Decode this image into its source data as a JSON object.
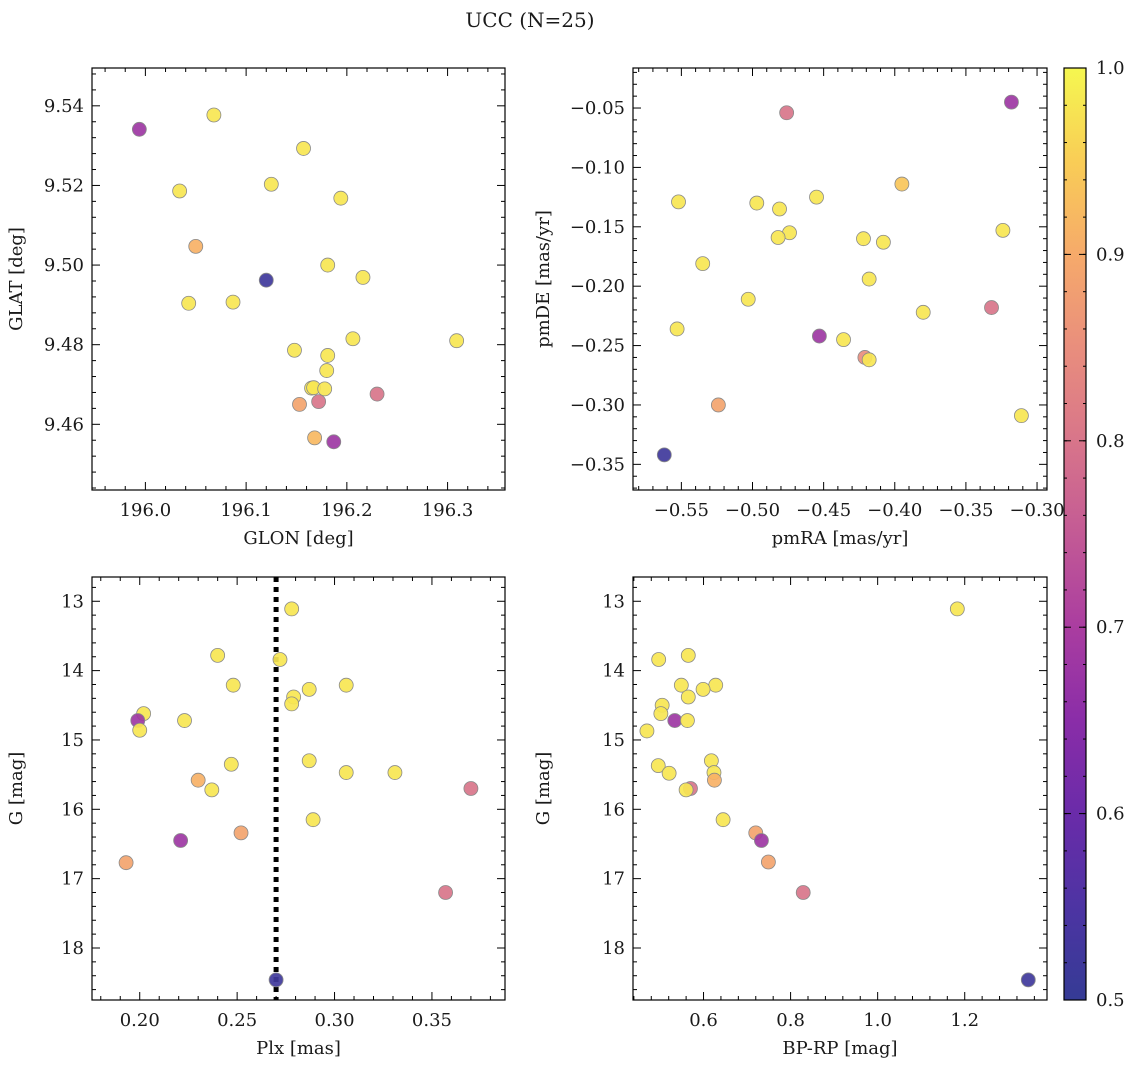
{
  "title": "UCC (N=25)",
  "colors": {
    "point_edge": "#8a8a8a",
    "vline": "#000000"
  },
  "colorbar": {
    "colormap": "plasma",
    "min": 0.5,
    "max": 1.0,
    "ticks": [
      "0.5",
      "0.6",
      "0.7",
      "0.8",
      "0.9",
      "1.0"
    ]
  },
  "chart_data": [
    {
      "type": "scatter",
      "xlabel": "GLON [deg]",
      "ylabel": "GLAT [deg]",
      "xlim": [
        195.947,
        196.357
      ],
      "ylim": [
        9.4435,
        9.5495
      ],
      "y_inverted": false,
      "xticks": [
        196.0,
        196.1,
        196.2,
        196.3
      ],
      "xtick_labels": [
        "196.0",
        "196.1",
        "196.2",
        "196.3"
      ],
      "yticks": [
        9.46,
        9.48,
        9.5,
        9.52,
        9.54
      ],
      "ytick_labels": [
        "9.46",
        "9.48",
        "9.50",
        "9.52",
        "9.54"
      ],
      "points": [
        {
          "x": 195.994,
          "y": 9.5341,
          "c": 0.68
        },
        {
          "x": 196.068,
          "y": 9.5377,
          "c": 0.98
        },
        {
          "x": 196.157,
          "y": 9.5293,
          "c": 0.98
        },
        {
          "x": 196.125,
          "y": 9.5203,
          "c": 0.98
        },
        {
          "x": 196.034,
          "y": 9.5186,
          "c": 0.98
        },
        {
          "x": 196.194,
          "y": 9.5168,
          "c": 0.98
        },
        {
          "x": 196.05,
          "y": 9.5047,
          "c": 0.91
        },
        {
          "x": 196.181,
          "y": 9.5,
          "c": 0.98
        },
        {
          "x": 196.12,
          "y": 9.4962,
          "c": 0.52
        },
        {
          "x": 196.216,
          "y": 9.4969,
          "c": 0.98
        },
        {
          "x": 196.087,
          "y": 9.4907,
          "c": 0.98
        },
        {
          "x": 196.043,
          "y": 9.4904,
          "c": 0.98
        },
        {
          "x": 196.206,
          "y": 9.4815,
          "c": 0.98
        },
        {
          "x": 196.309,
          "y": 9.481,
          "c": 0.98
        },
        {
          "x": 196.148,
          "y": 9.4786,
          "c": 0.98
        },
        {
          "x": 196.181,
          "y": 9.4773,
          "c": 0.98
        },
        {
          "x": 196.18,
          "y": 9.4735,
          "c": 0.98
        },
        {
          "x": 196.165,
          "y": 9.4691,
          "c": 0.98
        },
        {
          "x": 196.167,
          "y": 9.4692,
          "c": 0.98
        },
        {
          "x": 196.178,
          "y": 9.4689,
          "c": 0.98
        },
        {
          "x": 196.23,
          "y": 9.4676,
          "c": 0.8
        },
        {
          "x": 196.172,
          "y": 9.4657,
          "c": 0.8
        },
        {
          "x": 196.153,
          "y": 9.465,
          "c": 0.89
        },
        {
          "x": 196.168,
          "y": 9.4566,
          "c": 0.92
        },
        {
          "x": 196.187,
          "y": 9.4556,
          "c": 0.68
        }
      ]
    },
    {
      "type": "scatter",
      "xlabel": "pmRA [mas/yr]",
      "ylabel": "pmDE [mas/yr]",
      "xlim": [
        -0.584,
        -0.293
      ],
      "ylim": [
        -0.3716,
        -0.0163
      ],
      "y_inverted": false,
      "xticks": [
        -0.55,
        -0.5,
        -0.45,
        -0.4,
        -0.35,
        -0.3
      ],
      "xtick_labels": [
        "−0.55",
        "−0.50",
        "−0.45",
        "−0.40",
        "−0.35",
        "−0.30"
      ],
      "yticks": [
        -0.35,
        -0.3,
        -0.25,
        -0.2,
        -0.15,
        -0.1,
        -0.05
      ],
      "ytick_labels": [
        "−0.35",
        "−0.30",
        "−0.25",
        "−0.20",
        "−0.15",
        "−0.10",
        "−0.05"
      ],
      "points": [
        {
          "x": -0.318,
          "y": -0.045,
          "c": 0.68
        },
        {
          "x": -0.476,
          "y": -0.054,
          "c": 0.8
        },
        {
          "x": -0.395,
          "y": -0.114,
          "c": 0.94
        },
        {
          "x": -0.455,
          "y": -0.125,
          "c": 0.98
        },
        {
          "x": -0.552,
          "y": -0.129,
          "c": 0.98
        },
        {
          "x": -0.497,
          "y": -0.13,
          "c": 0.98
        },
        {
          "x": -0.481,
          "y": -0.135,
          "c": 0.98
        },
        {
          "x": -0.324,
          "y": -0.153,
          "c": 0.98
        },
        {
          "x": -0.474,
          "y": -0.155,
          "c": 0.98
        },
        {
          "x": -0.482,
          "y": -0.159,
          "c": 0.98
        },
        {
          "x": -0.422,
          "y": -0.16,
          "c": 0.98
        },
        {
          "x": -0.408,
          "y": -0.163,
          "c": 0.98
        },
        {
          "x": -0.535,
          "y": -0.181,
          "c": 0.98
        },
        {
          "x": -0.418,
          "y": -0.194,
          "c": 0.98
        },
        {
          "x": -0.503,
          "y": -0.211,
          "c": 0.98
        },
        {
          "x": -0.38,
          "y": -0.222,
          "c": 0.98
        },
        {
          "x": -0.332,
          "y": -0.218,
          "c": 0.8
        },
        {
          "x": -0.553,
          "y": -0.236,
          "c": 0.98
        },
        {
          "x": -0.453,
          "y": -0.242,
          "c": 0.68
        },
        {
          "x": -0.436,
          "y": -0.245,
          "c": 0.98
        },
        {
          "x": -0.421,
          "y": -0.26,
          "c": 0.85
        },
        {
          "x": -0.418,
          "y": -0.262,
          "c": 0.98
        },
        {
          "x": -0.524,
          "y": -0.3,
          "c": 0.89
        },
        {
          "x": -0.311,
          "y": -0.309,
          "c": 0.98
        },
        {
          "x": -0.562,
          "y": -0.342,
          "c": 0.52
        }
      ]
    },
    {
      "type": "scatter",
      "xlabel": "Plx [mas]",
      "ylabel": "G [mag]",
      "xlim": [
        0.1755,
        0.3875
      ],
      "ylim": [
        12.65,
        18.75
      ],
      "y_inverted": true,
      "vline": {
        "x": 0.27,
        "style": "dotted"
      },
      "xticks": [
        0.2,
        0.25,
        0.3,
        0.35
      ],
      "xtick_labels": [
        "0.20",
        "0.25",
        "0.30",
        "0.35"
      ],
      "yticks": [
        13,
        14,
        15,
        16,
        17,
        18
      ],
      "ytick_labels": [
        "13",
        "14",
        "15",
        "16",
        "17",
        "18"
      ],
      "points": [
        {
          "x": 0.278,
          "y": 13.11,
          "c": 0.98
        },
        {
          "x": 0.24,
          "y": 13.78,
          "c": 0.98
        },
        {
          "x": 0.272,
          "y": 13.84,
          "c": 0.98
        },
        {
          "x": 0.248,
          "y": 14.21,
          "c": 0.98
        },
        {
          "x": 0.306,
          "y": 14.21,
          "c": 0.98
        },
        {
          "x": 0.287,
          "y": 14.27,
          "c": 0.98
        },
        {
          "x": 0.279,
          "y": 14.38,
          "c": 0.98
        },
        {
          "x": 0.278,
          "y": 14.48,
          "c": 0.98
        },
        {
          "x": 0.202,
          "y": 14.62,
          "c": 0.98
        },
        {
          "x": 0.199,
          "y": 14.72,
          "c": 0.68
        },
        {
          "x": 0.223,
          "y": 14.72,
          "c": 0.98
        },
        {
          "x": 0.2,
          "y": 14.86,
          "c": 0.98
        },
        {
          "x": 0.287,
          "y": 15.3,
          "c": 0.98
        },
        {
          "x": 0.247,
          "y": 15.35,
          "c": 0.98
        },
        {
          "x": 0.306,
          "y": 15.47,
          "c": 0.98
        },
        {
          "x": 0.331,
          "y": 15.47,
          "c": 0.98
        },
        {
          "x": 0.23,
          "y": 15.58,
          "c": 0.91
        },
        {
          "x": 0.37,
          "y": 15.7,
          "c": 0.8
        },
        {
          "x": 0.237,
          "y": 15.72,
          "c": 0.98
        },
        {
          "x": 0.289,
          "y": 16.15,
          "c": 0.98
        },
        {
          "x": 0.252,
          "y": 16.34,
          "c": 0.89
        },
        {
          "x": 0.221,
          "y": 16.45,
          "c": 0.68
        },
        {
          "x": 0.193,
          "y": 16.77,
          "c": 0.89
        },
        {
          "x": 0.357,
          "y": 17.2,
          "c": 0.8
        },
        {
          "x": 0.27,
          "y": 18.46,
          "c": 0.52
        }
      ]
    },
    {
      "type": "scatter",
      "xlabel": "BP-RP [mag]",
      "ylabel": "G [mag]",
      "xlim": [
        0.438,
        1.389
      ],
      "ylim": [
        12.65,
        18.75
      ],
      "y_inverted": true,
      "xticks": [
        0.6,
        0.8,
        1.0,
        1.2
      ],
      "xtick_labels": [
        "0.6",
        "0.8",
        "1.0",
        "1.2"
      ],
      "yticks": [
        13,
        14,
        15,
        16,
        17,
        18
      ],
      "ytick_labels": [
        "13",
        "14",
        "15",
        "16",
        "17",
        "18"
      ],
      "points": [
        {
          "x": 1.183,
          "y": 13.11,
          "c": 0.98
        },
        {
          "x": 0.565,
          "y": 13.78,
          "c": 0.98
        },
        {
          "x": 0.497,
          "y": 13.84,
          "c": 0.98
        },
        {
          "x": 0.549,
          "y": 14.21,
          "c": 0.98
        },
        {
          "x": 0.628,
          "y": 14.21,
          "c": 0.98
        },
        {
          "x": 0.599,
          "y": 14.27,
          "c": 0.98
        },
        {
          "x": 0.565,
          "y": 14.38,
          "c": 0.98
        },
        {
          "x": 0.505,
          "y": 14.5,
          "c": 0.98
        },
        {
          "x": 0.502,
          "y": 14.62,
          "c": 0.98
        },
        {
          "x": 0.534,
          "y": 14.72,
          "c": 0.68
        },
        {
          "x": 0.563,
          "y": 14.72,
          "c": 0.98
        },
        {
          "x": 0.47,
          "y": 14.87,
          "c": 0.98
        },
        {
          "x": 0.618,
          "y": 15.3,
          "c": 0.98
        },
        {
          "x": 0.496,
          "y": 15.37,
          "c": 0.98
        },
        {
          "x": 0.624,
          "y": 15.47,
          "c": 0.98
        },
        {
          "x": 0.521,
          "y": 15.48,
          "c": 0.98
        },
        {
          "x": 0.625,
          "y": 15.58,
          "c": 0.91
        },
        {
          "x": 0.57,
          "y": 15.7,
          "c": 0.8
        },
        {
          "x": 0.56,
          "y": 15.72,
          "c": 0.98
        },
        {
          "x": 0.645,
          "y": 16.15,
          "c": 0.98
        },
        {
          "x": 0.72,
          "y": 16.34,
          "c": 0.89
        },
        {
          "x": 0.733,
          "y": 16.45,
          "c": 0.68
        },
        {
          "x": 0.749,
          "y": 16.76,
          "c": 0.89
        },
        {
          "x": 0.829,
          "y": 17.2,
          "c": 0.8
        },
        {
          "x": 1.346,
          "y": 18.46,
          "c": 0.52
        }
      ]
    }
  ]
}
